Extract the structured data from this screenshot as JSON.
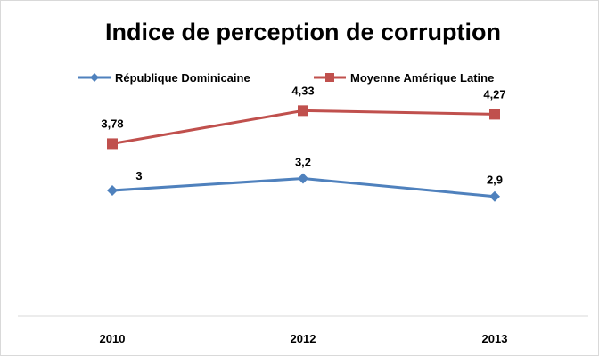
{
  "chart_data": {
    "type": "line",
    "title": "Indice de perception de corruption",
    "categories": [
      "2010",
      "2012",
      "2013"
    ],
    "series": [
      {
        "name": "République Dominicaine",
        "values": [
          3,
          3.2,
          2.9
        ],
        "labels": [
          "3",
          "3,2",
          "2,9"
        ],
        "color": "#4f81bd",
        "marker": "diamond"
      },
      {
        "name": "Moyenne Amérique Latine",
        "values": [
          3.78,
          4.33,
          4.27
        ],
        "labels": [
          "3,78",
          "4,33",
          "4,27"
        ],
        "color": "#c0504d",
        "marker": "square"
      }
    ],
    "xlabel": "",
    "ylabel": "",
    "legend_position": "top",
    "grid": false
  }
}
